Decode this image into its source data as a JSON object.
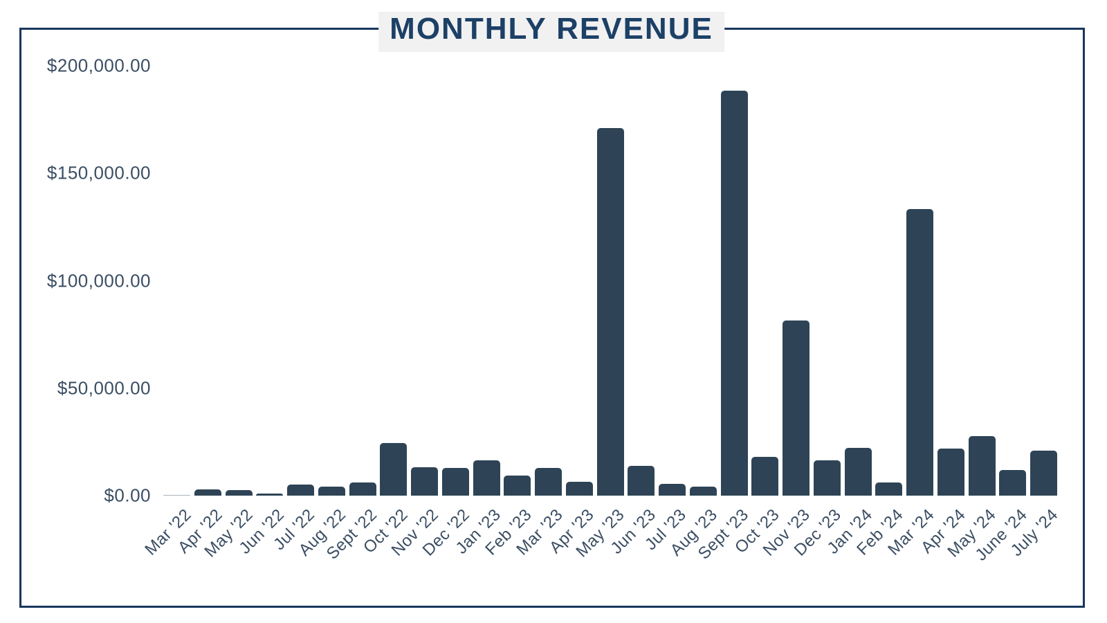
{
  "colors": {
    "bar": "#2e4456",
    "frame": "#17365c",
    "title_text": "#1c4066",
    "axis_text": "#3b4e63",
    "title_bg": "#f1f1f2"
  },
  "chart_data": {
    "type": "bar",
    "title": "MONTHLY REVENUE",
    "xlabel": "",
    "ylabel": "",
    "ylim": [
      0,
      200000
    ],
    "grid": false,
    "legend": null,
    "categories": [
      "Mar '22",
      "Apr '22",
      "May '22",
      "Jun '22",
      "Jul '22",
      "Aug '22",
      "Sept '22",
      "Oct '22",
      "Nov '22",
      "Dec '22",
      "Jan '23",
      "Feb '23",
      "Mar '23",
      "Apr '23",
      "May '23",
      "Jun '23",
      "Jul '23",
      "Aug '23",
      "Sept '23",
      "Oct '23",
      "Nov '23",
      "Dec '23",
      "Jan '24",
      "Feb '24",
      "Mar '24",
      "Apr '24",
      "May '24",
      "June '24",
      "July '24"
    ],
    "values": [
      200,
      2900,
      2600,
      1100,
      5100,
      4200,
      6100,
      24400,
      13300,
      12900,
      16400,
      9300,
      12900,
      6400,
      171000,
      14000,
      5400,
      4100,
      188500,
      17900,
      81500,
      16500,
      22100,
      6200,
      133500,
      21900,
      27800,
      12000,
      21000
    ],
    "yticks": [
      0,
      50000,
      100000,
      150000,
      200000
    ],
    "ytick_labels": [
      "$0.00",
      "$50,000.00",
      "$100,000.00",
      "$150,000.00",
      "$200,000.00"
    ]
  }
}
